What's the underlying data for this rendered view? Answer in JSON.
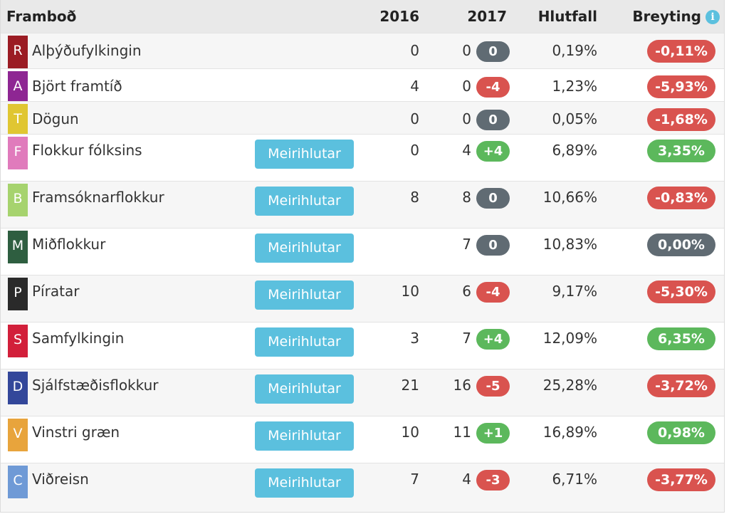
{
  "header": {
    "party": "Framboð",
    "y2016": "2016",
    "y2017": "2017",
    "share": "Hlutfall",
    "change": "Breyting",
    "info_glyph": "i"
  },
  "button_label": "Meirihlutar",
  "rows": [
    {
      "letter": "R",
      "color": "#9b1c24",
      "name": "Alþýðufylkingin",
      "y2016": "0",
      "y2017": "0",
      "delta": "0",
      "delta_type": "gray",
      "share": "0,19%",
      "change": "-0,11%",
      "change_type": "red",
      "button": false
    },
    {
      "letter": "A",
      "color": "#8e2693",
      "name": "Björt framtíð",
      "y2016": "4",
      "y2017": "0",
      "delta": "-4",
      "delta_type": "red",
      "share": "1,23%",
      "change": "-5,93%",
      "change_type": "red",
      "button": false
    },
    {
      "letter": "T",
      "color": "#e0c632",
      "name": "Dögun",
      "y2016": "0",
      "y2017": "0",
      "delta": "0",
      "delta_type": "gray",
      "share": "0,05%",
      "change": "-1,68%",
      "change_type": "red",
      "button": false
    },
    {
      "letter": "F",
      "color": "#e07bbc",
      "name": "Flokkur fólksins",
      "y2016": "0",
      "y2017": "4",
      "delta": "+4",
      "delta_type": "green",
      "share": "6,89%",
      "change": "3,35%",
      "change_type": "green",
      "button": true
    },
    {
      "letter": "B",
      "color": "#a6d36e",
      "name": "Framsóknarflokkur",
      "y2016": "8",
      "y2017": "8",
      "delta": "0",
      "delta_type": "gray",
      "share": "10,66%",
      "change": "-0,83%",
      "change_type": "red",
      "button": true
    },
    {
      "letter": "M",
      "color": "#2e5e40",
      "name": "Miðflokkur",
      "y2016": "",
      "y2017": "7",
      "delta": "0",
      "delta_type": "gray",
      "share": "10,83%",
      "change": "0,00%",
      "change_type": "gray",
      "button": true
    },
    {
      "letter": "P",
      "color": "#2a2a2a",
      "name": "Píratar",
      "y2016": "10",
      "y2017": "6",
      "delta": "-4",
      "delta_type": "red",
      "share": "9,17%",
      "change": "-5,30%",
      "change_type": "red",
      "button": true
    },
    {
      "letter": "S",
      "color": "#d21f3a",
      "name": "Samfylkingin",
      "y2016": "3",
      "y2017": "7",
      "delta": "+4",
      "delta_type": "green",
      "share": "12,09%",
      "change": "6,35%",
      "change_type": "green",
      "button": true
    },
    {
      "letter": "D",
      "color": "#33479a",
      "name": "Sjálfstæðisflokkur",
      "y2016": "21",
      "y2017": "16",
      "delta": "-5",
      "delta_type": "red",
      "share": "25,28%",
      "change": "-3,72%",
      "change_type": "red",
      "button": true
    },
    {
      "letter": "V",
      "color": "#e8a43c",
      "name": "Vinstri græn",
      "y2016": "10",
      "y2017": "11",
      "delta": "+1",
      "delta_type": "green",
      "share": "16,89%",
      "change": "0,98%",
      "change_type": "green",
      "button": true
    },
    {
      "letter": "C",
      "color": "#6f9ad6",
      "name": "Viðreisn",
      "y2016": "7",
      "y2017": "4",
      "delta": "-3",
      "delta_type": "red",
      "share": "6,71%",
      "change": "-3,77%",
      "change_type": "red",
      "button": true
    }
  ]
}
